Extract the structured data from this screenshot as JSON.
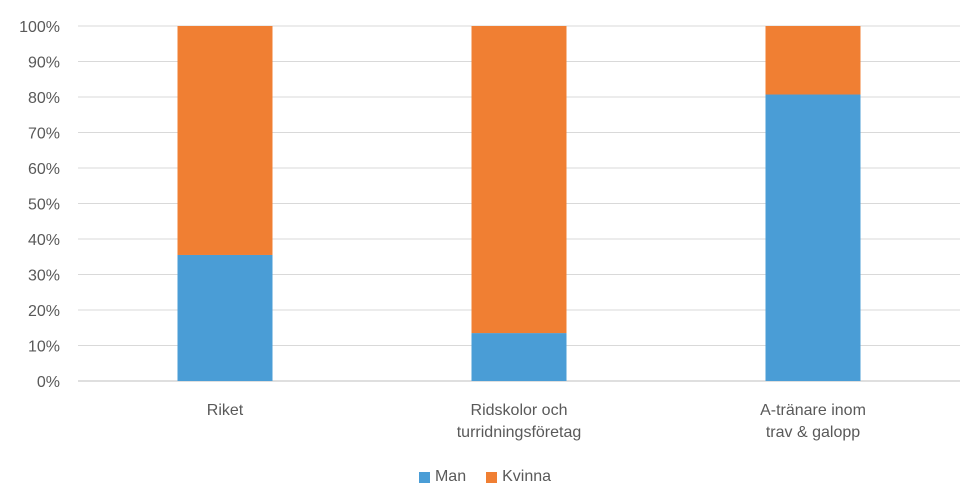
{
  "chart_data": {
    "type": "bar",
    "stacked": true,
    "categories": [
      [
        "Riket"
      ],
      [
        "Ridskolor och",
        "turridningsföretag"
      ],
      [
        "A-tränare inom",
        "trav & galopp"
      ]
    ],
    "series": [
      {
        "name": "Man",
        "color": "#4a9dd6",
        "values": [
          35.5,
          13.5,
          80.7
        ]
      },
      {
        "name": "Kvinna",
        "color": "#f07f33",
        "values": [
          64.5,
          86.5,
          19.3
        ]
      }
    ],
    "yticks": [
      "0%",
      "10%",
      "20%",
      "30%",
      "40%",
      "50%",
      "60%",
      "70%",
      "80%",
      "90%",
      "100%"
    ],
    "ylim": [
      0,
      100
    ],
    "grid": true,
    "legend_position": "bottom"
  }
}
